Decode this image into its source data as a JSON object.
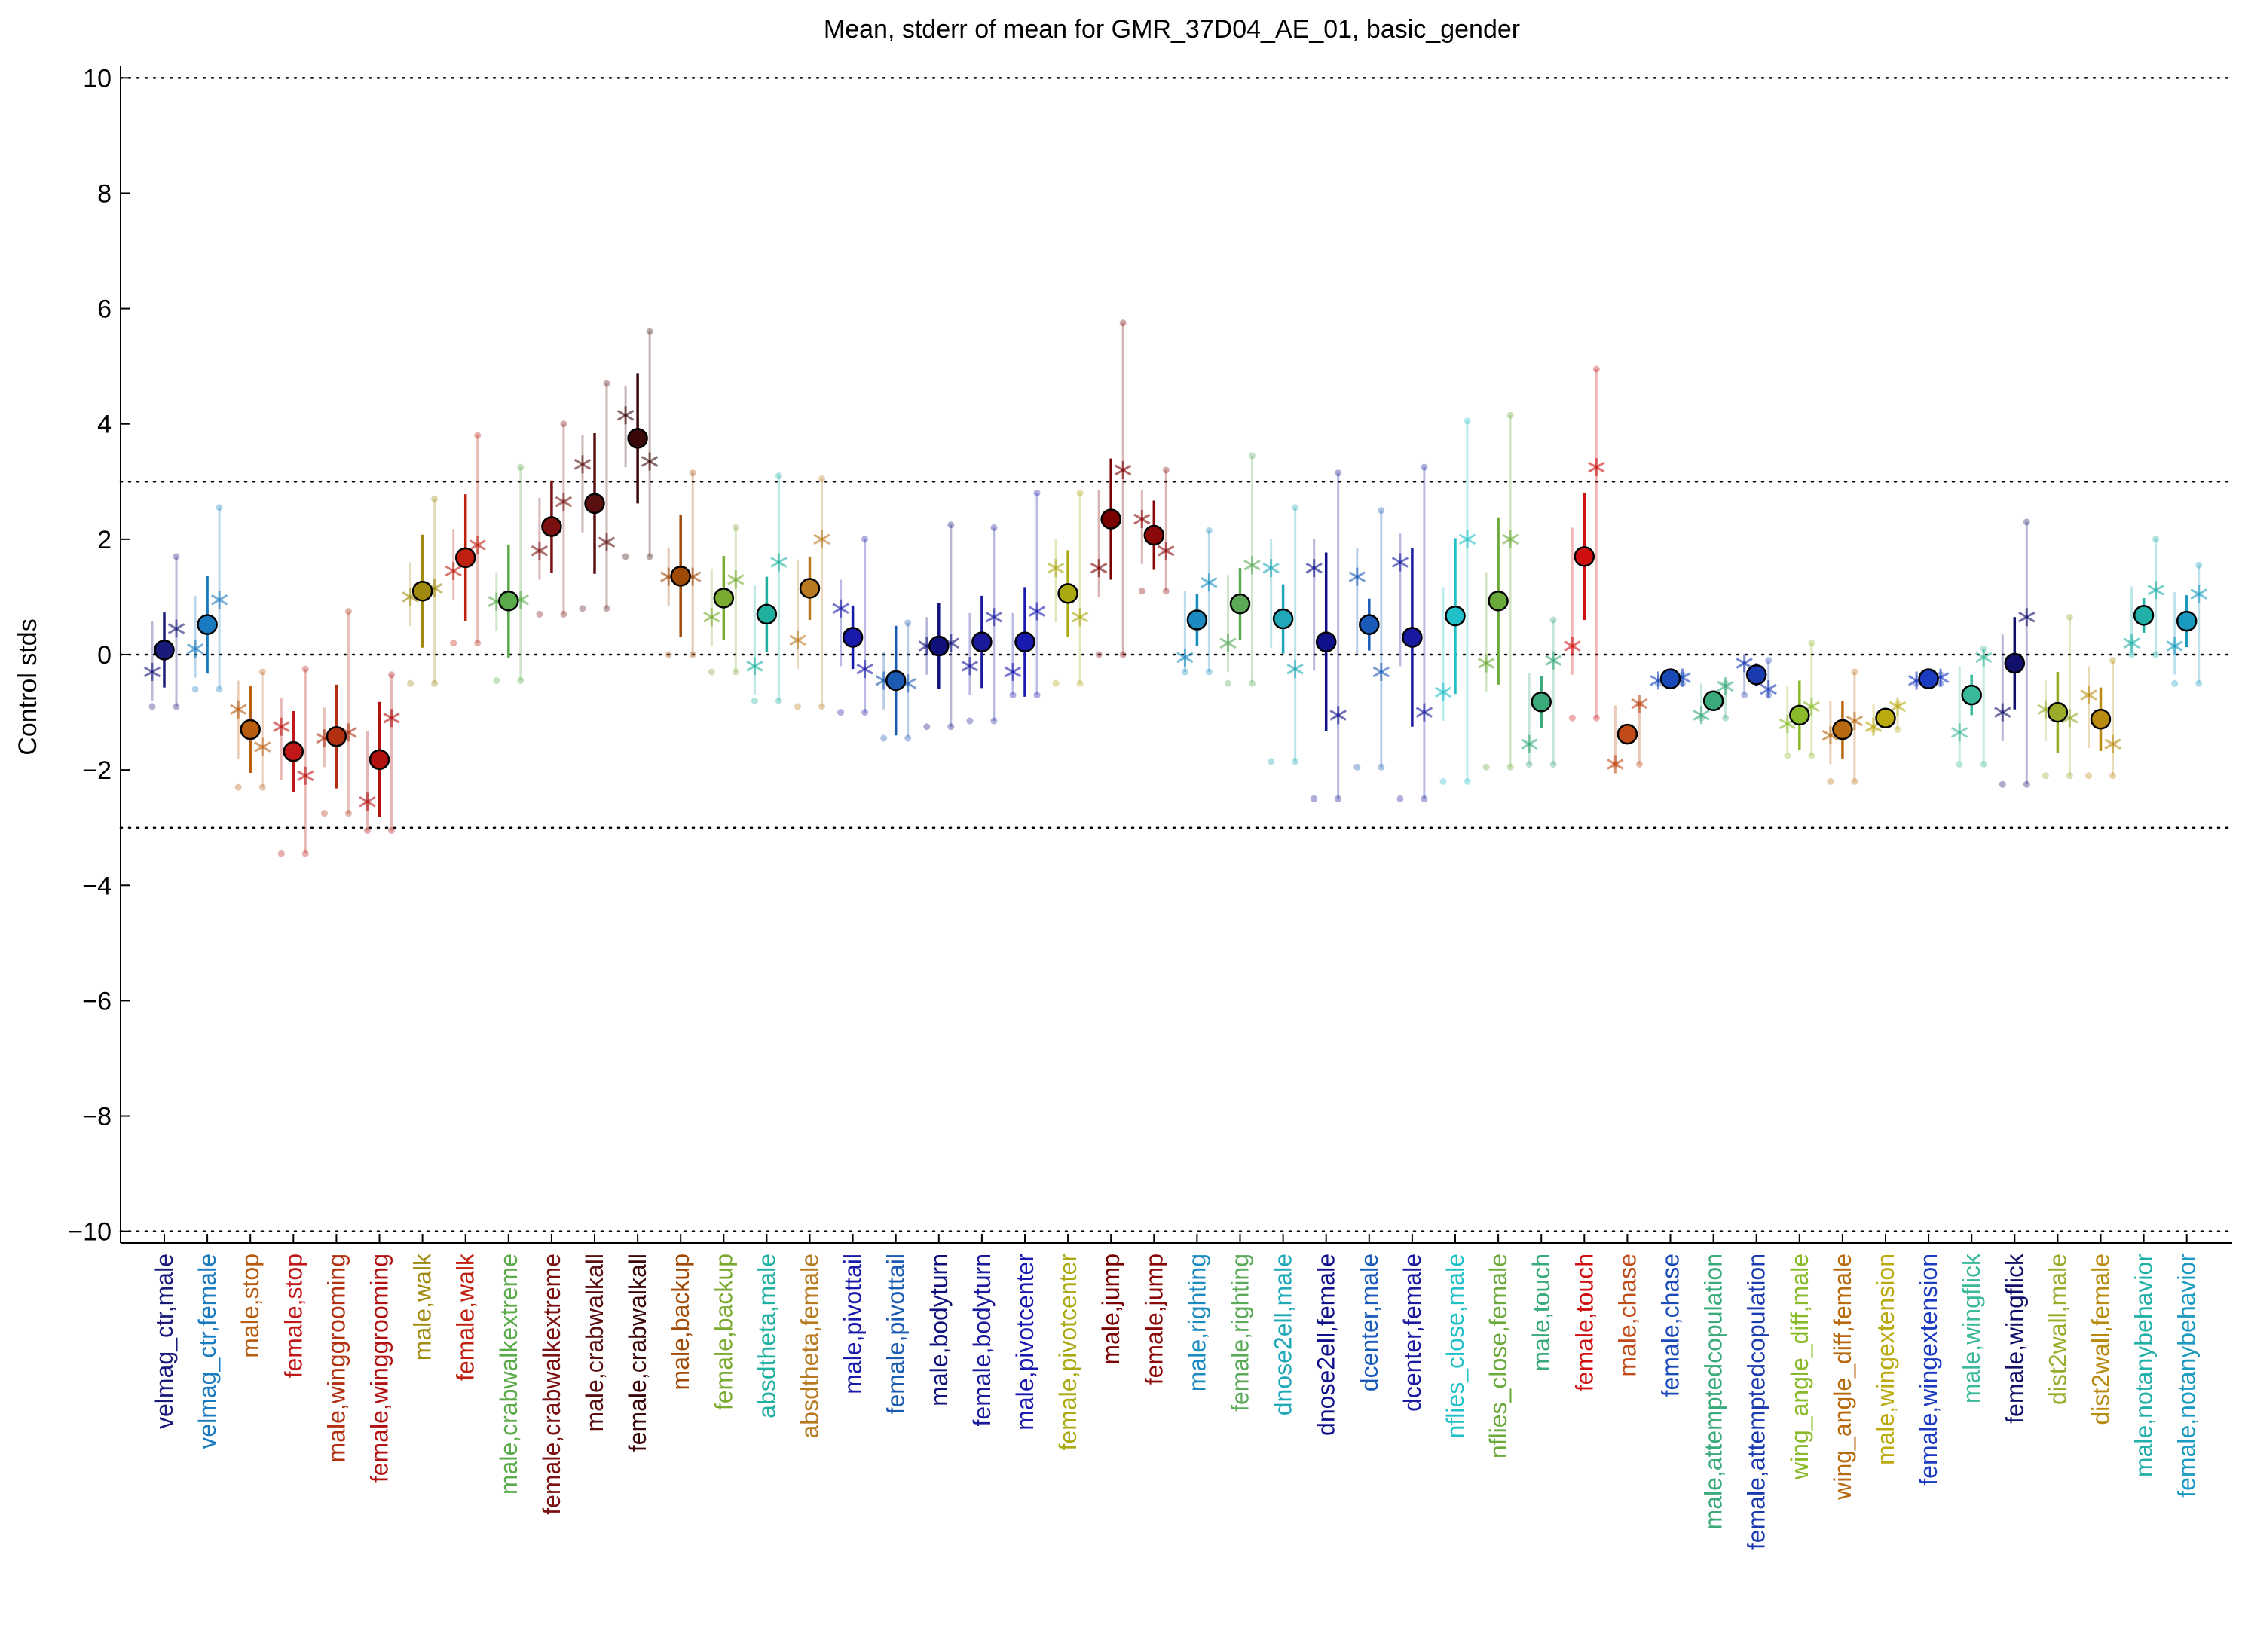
{
  "chart_data": {
    "type": "scatter",
    "title": "Mean, stderr of mean for GMR_37D04_AE_01, basic_gender",
    "xlabel": "",
    "ylabel": "Control stds",
    "ylim": [
      -10.2,
      10.2
    ],
    "yticks": [
      10,
      8,
      6,
      4,
      2,
      0,
      -2,
      -4,
      -6,
      -8,
      -10
    ],
    "ytick_labels": [
      "10",
      "8",
      "6",
      "4",
      "2",
      "0",
      "−2",
      "−4",
      "−6",
      "−8",
      "−10"
    ],
    "reference_lines": [
      10,
      3,
      0,
      -3,
      -10
    ],
    "grid": false,
    "legend": "none",
    "categories": [
      {
        "label": "velmag_ctr,male",
        "color": "#1a1a7a",
        "mean": 0.08,
        "sem": 0.65,
        "reps": [
          -0.3,
          0.45
        ],
        "range": [
          -0.9,
          1.7
        ]
      },
      {
        "label": "velmag_ctr,female",
        "color": "#1a7ac0",
        "mean": 0.52,
        "sem": 0.85,
        "reps": [
          0.1,
          0.95
        ],
        "range": [
          -0.6,
          2.55
        ]
      },
      {
        "label": "male,stop",
        "color": "#b85c10",
        "mean": -1.3,
        "sem": 0.75,
        "reps": [
          -0.95,
          -1.6
        ],
        "range": [
          -2.3,
          -0.3
        ]
      },
      {
        "label": "female,stop",
        "color": "#c01818",
        "mean": -1.68,
        "sem": 0.7,
        "reps": [
          -1.25,
          -2.1
        ],
        "range": [
          -3.45,
          -0.25
        ]
      },
      {
        "label": "male,winggrooming",
        "color": "#b03010",
        "mean": -1.42,
        "sem": 0.9,
        "reps": [
          -1.45,
          -1.35
        ],
        "range": [
          -2.75,
          0.75
        ]
      },
      {
        "label": "female,winggrooming",
        "color": "#b01010",
        "mean": -1.82,
        "sem": 1.0,
        "reps": [
          -2.55,
          -1.1
        ],
        "range": [
          -3.05,
          -0.35
        ]
      },
      {
        "label": "male,walk",
        "color": "#a08a10",
        "mean": 1.1,
        "sem": 0.98,
        "reps": [
          1.0,
          1.15
        ],
        "range": [
          -0.5,
          2.7
        ]
      },
      {
        "label": "female,walk",
        "color": "#c02010",
        "mean": 1.68,
        "sem": 1.1,
        "reps": [
          1.45,
          1.9
        ],
        "range": [
          0.2,
          3.8
        ]
      },
      {
        "label": "male,crabwalkextreme",
        "color": "#5aaa4a",
        "mean": 0.93,
        "sem": 0.98,
        "reps": [
          0.92,
          0.95
        ],
        "range": [
          -0.45,
          3.25
        ]
      },
      {
        "label": "female,crabwalkextreme",
        "color": "#7a1010",
        "mean": 2.22,
        "sem": 0.8,
        "reps": [
          1.8,
          2.65
        ],
        "range": [
          0.7,
          4.0
        ]
      },
      {
        "label": "male,crabwalkall",
        "color": "#5a1010",
        "mean": 2.62,
        "sem": 1.22,
        "reps": [
          3.3,
          1.95
        ],
        "range": [
          0.8,
          4.7
        ]
      },
      {
        "label": "female,crabwalkall",
        "color": "#3a0808",
        "mean": 3.75,
        "sem": 1.13,
        "reps": [
          4.15,
          3.35
        ],
        "range": [
          1.7,
          5.6
        ]
      },
      {
        "label": "male,backup",
        "color": "#a04a08",
        "mean": 1.36,
        "sem": 1.06,
        "reps": [
          1.35,
          1.35
        ],
        "range": [
          0.0,
          3.15
        ]
      },
      {
        "label": "female,backup",
        "color": "#7aaa30",
        "mean": 0.98,
        "sem": 0.73,
        "reps": [
          0.65,
          1.3
        ],
        "range": [
          -0.3,
          2.2
        ]
      },
      {
        "label": "absdtheta,male",
        "color": "#20b0a0",
        "mean": 0.7,
        "sem": 0.65,
        "reps": [
          -0.2,
          1.6
        ],
        "range": [
          -0.8,
          3.1
        ]
      },
      {
        "label": "absdtheta,female",
        "color": "#b87a20",
        "mean": 1.15,
        "sem": 0.55,
        "reps": [
          0.25,
          2.0
        ],
        "range": [
          -0.9,
          3.05
        ]
      },
      {
        "label": "male,pivottail",
        "color": "#1a1aaa",
        "mean": 0.3,
        "sem": 0.55,
        "reps": [
          0.8,
          -0.25
        ],
        "range": [
          -1.0,
          2.0
        ]
      },
      {
        "label": "female,pivottail",
        "color": "#1a5ab0",
        "mean": -0.45,
        "sem": 0.95,
        "reps": [
          -0.45,
          -0.5
        ],
        "range": [
          -1.45,
          0.55
        ]
      },
      {
        "label": "male,bodyturn",
        "color": "#10107a",
        "mean": 0.15,
        "sem": 0.75,
        "reps": [
          0.15,
          0.2
        ],
        "range": [
          -1.25,
          2.25
        ]
      },
      {
        "label": "female,bodyturn",
        "color": "#1a1a9a",
        "mean": 0.22,
        "sem": 0.8,
        "reps": [
          -0.2,
          0.65
        ],
        "range": [
          -1.15,
          2.2
        ]
      },
      {
        "label": "male,pivotcenter",
        "color": "#1a1ab0",
        "mean": 0.22,
        "sem": 0.95,
        "reps": [
          -0.3,
          0.75
        ],
        "range": [
          -0.7,
          2.8
        ]
      },
      {
        "label": "female,pivotcenter",
        "color": "#aaaa10",
        "mean": 1.06,
        "sem": 0.75,
        "reps": [
          1.5,
          0.65
        ],
        "range": [
          -0.5,
          2.8
        ]
      },
      {
        "label": "male,jump",
        "color": "#7a0000",
        "mean": 2.35,
        "sem": 1.05,
        "reps": [
          1.5,
          3.2
        ],
        "range": [
          0.0,
          5.75
        ]
      },
      {
        "label": "female,jump",
        "color": "#8a0808",
        "mean": 2.07,
        "sem": 0.6,
        "reps": [
          2.35,
          1.8
        ],
        "range": [
          1.1,
          3.2
        ]
      },
      {
        "label": "male,righting",
        "color": "#1a8ac0",
        "mean": 0.6,
        "sem": 0.45,
        "reps": [
          -0.05,
          1.25
        ],
        "range": [
          -0.3,
          2.15
        ]
      },
      {
        "label": "female,righting",
        "color": "#5aaa5a",
        "mean": 0.88,
        "sem": 0.62,
        "reps": [
          0.2,
          1.55
        ],
        "range": [
          -0.5,
          3.45
        ]
      },
      {
        "label": "dnose2ell,male",
        "color": "#20a8b8",
        "mean": 0.62,
        "sem": 0.6,
        "reps": [
          1.5,
          -0.25
        ],
        "range": [
          -1.85,
          2.55
        ]
      },
      {
        "label": "dnose2ell,female",
        "color": "#10108a",
        "mean": 0.22,
        "sem": 1.55,
        "reps": [
          1.5,
          -1.05
        ],
        "range": [
          -2.5,
          3.15
        ]
      },
      {
        "label": "dcenter,male",
        "color": "#1a5ab8",
        "mean": 0.52,
        "sem": 0.45,
        "reps": [
          1.35,
          -0.3
        ],
        "range": [
          -1.95,
          2.5
        ]
      },
      {
        "label": "dcenter,female",
        "color": "#1a1aa0",
        "mean": 0.3,
        "sem": 1.55,
        "reps": [
          1.6,
          -1.0
        ],
        "range": [
          -2.5,
          3.25
        ]
      },
      {
        "label": "nflies_close,male",
        "color": "#20c0c8",
        "mean": 0.67,
        "sem": 1.35,
        "reps": [
          -0.65,
          2.0
        ],
        "range": [
          -2.2,
          4.05
        ]
      },
      {
        "label": "nflies_close,female",
        "color": "#6aaa3a",
        "mean": 0.93,
        "sem": 1.45,
        "reps": [
          -0.15,
          2.0
        ],
        "range": [
          -1.95,
          4.15
        ]
      },
      {
        "label": "male,touch",
        "color": "#3aaa7a",
        "mean": -0.82,
        "sem": 0.45,
        "reps": [
          -1.55,
          -0.1
        ],
        "range": [
          -1.9,
          0.6
        ]
      },
      {
        "label": "female,touch",
        "color": "#d01010",
        "mean": 1.7,
        "sem": 1.1,
        "reps": [
          0.15,
          3.25
        ],
        "range": [
          -1.1,
          4.95
        ]
      },
      {
        "label": "male,chase",
        "color": "#c04a18",
        "mean": -1.38,
        "sem": 0.0,
        "reps": [
          -1.9,
          -0.85
        ],
        "range": [
          -1.9,
          -0.85
        ]
      },
      {
        "label": "female,chase",
        "color": "#1a4ab8",
        "mean": -0.42,
        "sem": 0.1,
        "reps": [
          -0.45,
          -0.4
        ],
        "range": [
          -0.5,
          -0.35
        ]
      },
      {
        "label": "male,attemptedcopulation",
        "color": "#3aaa7a",
        "mean": -0.8,
        "sem": 0.15,
        "reps": [
          -1.05,
          -0.55
        ],
        "range": [
          -1.1,
          -0.5
        ]
      },
      {
        "label": "female,attemptedcopulation",
        "color": "#1a3ab0",
        "mean": -0.35,
        "sem": 0.2,
        "reps": [
          -0.15,
          -0.6
        ],
        "range": [
          -0.7,
          -0.1
        ]
      },
      {
        "label": "wing_angle_diff,male",
        "color": "#8aba2a",
        "mean": -1.05,
        "sem": 0.6,
        "reps": [
          -1.2,
          -0.9
        ],
        "range": [
          -1.75,
          0.2
        ]
      },
      {
        "label": "wing_angle_diff,female",
        "color": "#b86a10",
        "mean": -1.3,
        "sem": 0.5,
        "reps": [
          -1.4,
          -1.15
        ],
        "range": [
          -2.2,
          -0.3
        ]
      },
      {
        "label": "male,wingextension",
        "color": "#baaa10",
        "mean": -1.1,
        "sem": 0.15,
        "reps": [
          -1.25,
          -0.9
        ],
        "range": [
          -1.3,
          -0.85
        ]
      },
      {
        "label": "female,wingextension",
        "color": "#1a3ac0",
        "mean": -0.42,
        "sem": 0.1,
        "reps": [
          -0.45,
          -0.4
        ],
        "range": [
          -0.5,
          -0.35
        ]
      },
      {
        "label": "male,wingflick",
        "color": "#3ab89a",
        "mean": -0.7,
        "sem": 0.35,
        "reps": [
          -1.35,
          -0.05
        ],
        "range": [
          -1.9,
          0.1
        ]
      },
      {
        "label": "female,wingflick",
        "color": "#10106a",
        "mean": -0.15,
        "sem": 0.8,
        "reps": [
          -1.0,
          0.65
        ],
        "range": [
          -2.25,
          2.3
        ]
      },
      {
        "label": "dist2wall,male",
        "color": "#9aaa2a",
        "mean": -1.0,
        "sem": 0.7,
        "reps": [
          -0.95,
          -1.1
        ],
        "range": [
          -2.1,
          0.65
        ]
      },
      {
        "label": "dist2wall,female",
        "color": "#b88a10",
        "mean": -1.12,
        "sem": 0.55,
        "reps": [
          -0.7,
          -1.55
        ],
        "range": [
          -2.1,
          -0.1
        ]
      },
      {
        "label": "male,notanybehavior",
        "color": "#20b0a8",
        "mean": 0.68,
        "sem": 0.3,
        "reps": [
          0.2,
          1.12
        ],
        "range": [
          0.0,
          2.0
        ]
      },
      {
        "label": "female,notanybehavior",
        "color": "#1a9ac0",
        "mean": 0.58,
        "sem": 0.45,
        "reps": [
          0.15,
          1.05
        ],
        "range": [
          -0.5,
          1.55
        ]
      }
    ]
  }
}
